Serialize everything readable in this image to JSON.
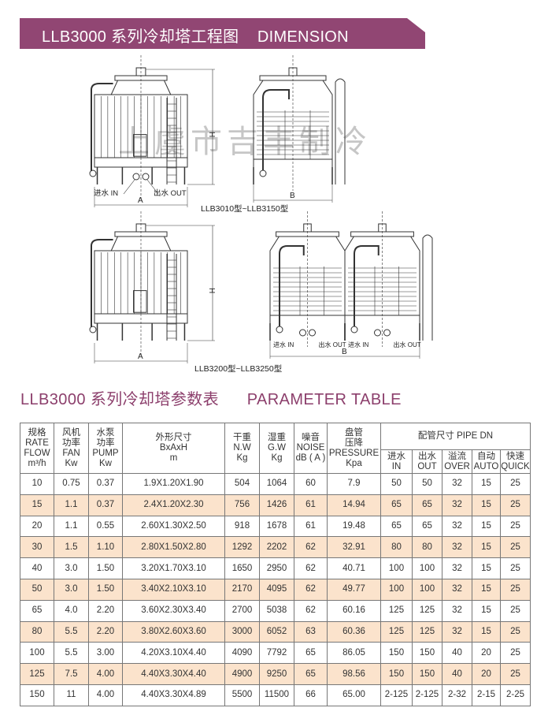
{
  "header": {
    "title": "LLB3000 系列冷却塔工程图    DIMENSION",
    "banner_color": "#914673"
  },
  "watermark": "上虞市吉丰制冷",
  "drawings": {
    "labels": {
      "a": "A",
      "b": "B",
      "h": "H",
      "inlet": "进水 IN",
      "outlet": "出水 OUT"
    },
    "caption_1": "LLB3010型~LLB3150型",
    "caption_2": "LLB3200型~LLB3250型"
  },
  "table_section": {
    "title": "LLB3000 系列冷却塔参数表      PARAMETER TABLE",
    "title_color": "#8c3f6c"
  },
  "table": {
    "headers": {
      "rate": [
        "规格",
        "RATE",
        "FLOW",
        "m³/h"
      ],
      "fan": [
        "风机",
        "功率",
        "FAN",
        "Kw"
      ],
      "pump": [
        "水泵",
        "功率",
        "PUMP",
        "Kw"
      ],
      "size": [
        "外形尺寸",
        "BxAxH",
        "m"
      ],
      "nw": [
        "干重",
        "N.W",
        "Kg"
      ],
      "gw": [
        "湿重",
        "G.W",
        "Kg"
      ],
      "noise": [
        "噪音",
        "NOISE",
        "dB ( A )"
      ],
      "pressure": [
        "盘管",
        "压降",
        "PRESSURE",
        "Kpa"
      ],
      "pipe_group": "配管尺寸  PIPE DN",
      "pipe": [
        [
          "进水",
          "IN"
        ],
        [
          "出水",
          "OUT"
        ],
        [
          "溢流",
          "OVER"
        ],
        [
          "自动",
          "AUTO"
        ],
        [
          "快速",
          "QUICK"
        ]
      ]
    },
    "row_alt_color": "#fbe3cc",
    "rows": [
      [
        "10",
        "0.75",
        "0.37",
        "1.9X1.20X1.90",
        "504",
        "1064",
        "60",
        "7.9",
        "50",
        "50",
        "32",
        "15",
        "25"
      ],
      [
        "15",
        "1.1",
        "0.37",
        "2.4X1.20X2.30",
        "756",
        "1426",
        "61",
        "14.94",
        "65",
        "65",
        "32",
        "15",
        "25"
      ],
      [
        "20",
        "1.1",
        "0.55",
        "2.60X1.30X2.50",
        "918",
        "1678",
        "61",
        "19.48",
        "65",
        "65",
        "32",
        "15",
        "25"
      ],
      [
        "30",
        "1.5",
        "1.10",
        "2.80X1.50X2.80",
        "1292",
        "2202",
        "62",
        "32.91",
        "80",
        "80",
        "32",
        "15",
        "25"
      ],
      [
        "40",
        "3.0",
        "1.50",
        "3.20X1.70X3.10",
        "1650",
        "2950",
        "62",
        "40.71",
        "100",
        "100",
        "32",
        "15",
        "25"
      ],
      [
        "50",
        "3.0",
        "1.50",
        "3.40X2.10X3.10",
        "2170",
        "4095",
        "62",
        "49.77",
        "100",
        "100",
        "32",
        "15",
        "25"
      ],
      [
        "65",
        "4.0",
        "2.20",
        "3.60X2.30X3.40",
        "2700",
        "5038",
        "62",
        "60.16",
        "125",
        "125",
        "32",
        "15",
        "25"
      ],
      [
        "80",
        "5.5",
        "2.20",
        "3.80X2.60X3.60",
        "3000",
        "6052",
        "63",
        "60.36",
        "125",
        "125",
        "32",
        "15",
        "25"
      ],
      [
        "100",
        "5.5",
        "3.00",
        "4.20X3.10X4.40",
        "4090",
        "7792",
        "65",
        "86.05",
        "150",
        "150",
        "40",
        "20",
        "25"
      ],
      [
        "125",
        "7.5",
        "4.00",
        "4.40X3.30X4.40",
        "4900",
        "9250",
        "65",
        "98.56",
        "150",
        "150",
        "40",
        "20",
        "25"
      ],
      [
        "150",
        "11",
        "4.00",
        "4.40X3.30X4.89",
        "5500",
        "11500",
        "66",
        "65.00",
        "2-125",
        "2-125",
        "2-32",
        "2-15",
        "2-25"
      ]
    ]
  }
}
